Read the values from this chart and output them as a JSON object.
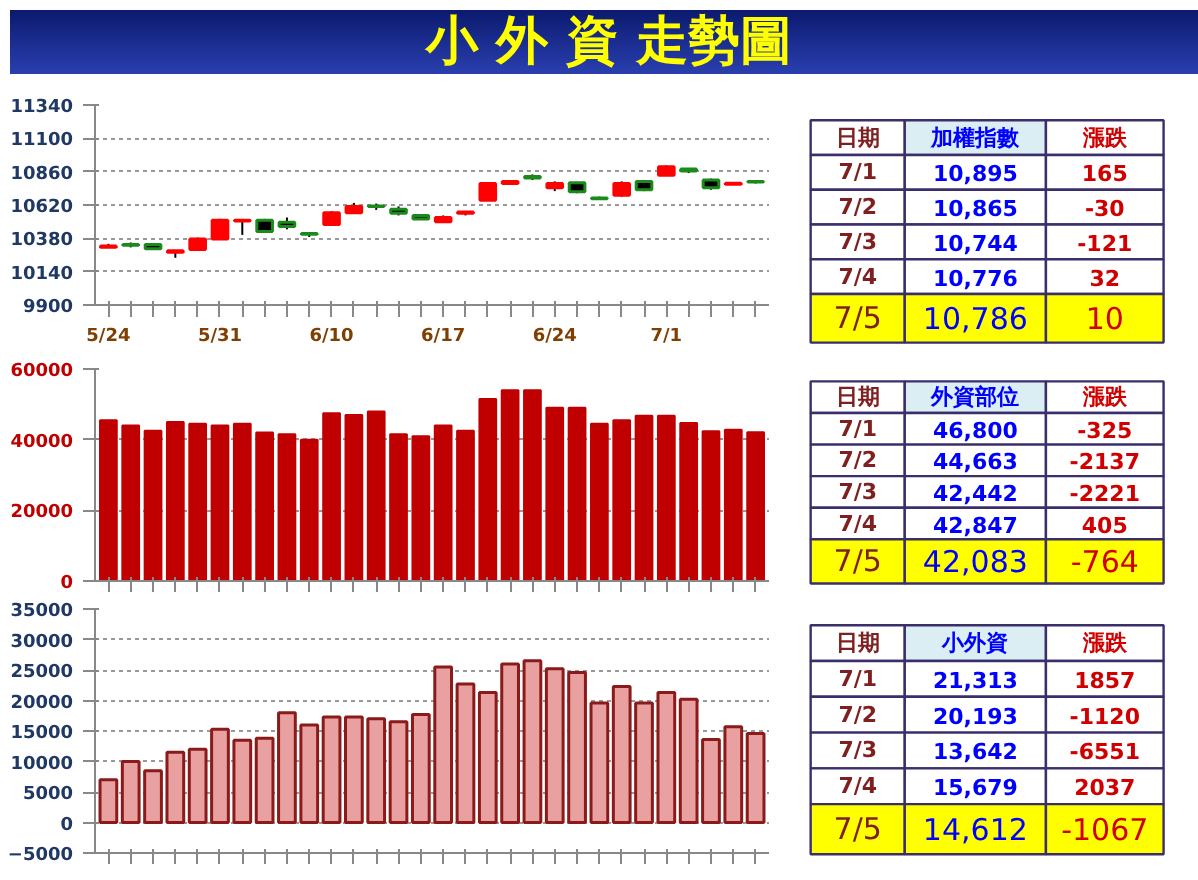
{
  "chart_data": [
    {
      "type": "candlestick",
      "title": "小 外 資 走勢圖",
      "categories": [
        "5/24",
        null,
        null,
        null,
        null,
        "5/31",
        null,
        null,
        null,
        null,
        "6/10",
        null,
        null,
        null,
        null,
        "6/17",
        null,
        null,
        null,
        null,
        "6/24",
        null,
        null,
        null,
        null,
        "7/1",
        null,
        null,
        null,
        null
      ],
      "ohlc": [
        [
          10315,
          10340,
          10310,
          10325
        ],
        [
          10335,
          10350,
          10315,
          10330
        ],
        [
          10335,
          10340,
          10300,
          10305
        ],
        [
          10280,
          10295,
          10240,
          10290
        ],
        [
          10300,
          10385,
          10295,
          10375
        ],
        [
          10375,
          10520,
          10370,
          10510
        ],
        [
          10505,
          10515,
          10405,
          10510
        ],
        [
          10510,
          10520,
          10420,
          10430
        ],
        [
          10495,
          10530,
          10445,
          10465
        ],
        [
          10415,
          10425,
          10390,
          10410
        ],
        [
          10480,
          10575,
          10475,
          10565
        ],
        [
          10565,
          10635,
          10560,
          10610
        ],
        [
          10612,
          10630,
          10585,
          10610
        ],
        [
          10590,
          10610,
          10545,
          10560
        ],
        [
          10545,
          10555,
          10515,
          10520
        ],
        [
          10500,
          10545,
          10490,
          10530
        ],
        [
          10560,
          10575,
          10545,
          10570
        ],
        [
          10655,
          10780,
          10650,
          10775
        ],
        [
          10775,
          10800,
          10770,
          10790
        ],
        [
          10825,
          10840,
          10800,
          10815
        ],
        [
          10745,
          10790,
          10720,
          10775
        ],
        [
          10780,
          10785,
          10705,
          10715
        ],
        [
          10670,
          10680,
          10660,
          10665
        ],
        [
          10690,
          10790,
          10680,
          10775
        ],
        [
          10790,
          10795,
          10720,
          10730
        ],
        [
          10835,
          10905,
          10830,
          10895
        ],
        [
          10880,
          10885,
          10850,
          10865
        ],
        [
          10800,
          10810,
          10730,
          10744
        ],
        [
          10770,
          10785,
          10765,
          10776
        ],
        [
          10790,
          10800,
          10775,
          10786
        ]
      ],
      "colors": [
        "#ff0000",
        "#000000",
        "#000000",
        "#ff0000",
        "#ff0000",
        "#ff0000",
        "#ff0000",
        "#000000",
        "#000000",
        "#000000",
        "#ff0000",
        "#ff0000",
        "#000000",
        "#000000",
        "#000000",
        "#ff0000",
        "#ff0000",
        "#ff0000",
        "#ff0000",
        "#000000",
        "#ff0000",
        "#000000",
        "#000000",
        "#ff0000",
        "#000000",
        "#ff0000",
        "#000000",
        "#000000",
        "#ff0000",
        "#000000"
      ],
      "ylim": [
        9900,
        11340
      ],
      "yticks": [
        9900,
        10140,
        10380,
        10620,
        10860,
        11100,
        11340
      ],
      "grid": "y"
    },
    {
      "type": "bar",
      "categories": [
        null,
        null,
        null,
        null,
        null,
        null,
        null,
        null,
        null,
        null,
        null,
        null,
        null,
        null,
        null,
        null,
        null,
        null,
        null,
        null,
        null,
        null,
        null,
        null,
        null,
        null,
        null,
        null,
        null,
        null
      ],
      "values": [
        45500,
        44000,
        42500,
        45000,
        44500,
        44000,
        44500,
        42000,
        41500,
        40000,
        47500,
        47000,
        48000,
        41500,
        41000,
        44000,
        42500,
        51500,
        54000,
        54000,
        49000,
        49000,
        44500,
        45500,
        46800,
        46800,
        44700,
        42400,
        42800,
        42100
      ],
      "color": "#c00000",
      "ylim": [
        0,
        60000
      ],
      "yticks": [
        0,
        20000,
        40000,
        60000
      ],
      "grid": "y",
      "tick_labels": "y"
    },
    {
      "type": "bar",
      "categories": [
        null,
        null,
        null,
        null,
        null,
        null,
        null,
        null,
        null,
        null,
        null,
        null,
        null,
        null,
        null,
        null,
        null,
        null,
        null,
        null,
        null,
        null,
        null,
        null,
        null,
        null,
        null,
        null,
        null,
        null
      ],
      "values": [
        7000,
        10000,
        8500,
        11500,
        12000,
        15300,
        13500,
        13800,
        18000,
        16000,
        17300,
        17300,
        17000,
        16500,
        17700,
        25500,
        22700,
        21300,
        26000,
        26500,
        25200,
        24600,
        19600,
        22300,
        19600,
        21300,
        20200,
        13600,
        15700,
        14600
      ],
      "color": "#e8a0a0",
      "ylim": [
        -5000,
        35000
      ],
      "yticks": [
        -5000,
        0,
        5000,
        10000,
        15000,
        20000,
        25000,
        30000,
        35000
      ],
      "grid": "y",
      "tick_labels": "y"
    },
    {
      "type": "other",
      "annotations": [
        "日期",
        "加權指數",
        "漲跌",
        "7/1",
        "10,895",
        "165",
        "7/2",
        "10,865",
        "-30",
        "7/3",
        "10,744",
        "-121",
        "7/4",
        "10,776",
        "32",
        "7/5",
        "10,786",
        "10"
      ]
    },
    {
      "type": "other",
      "annotations": [
        "日期",
        "外資部位",
        "漲跌",
        "7/1",
        "46,800",
        "-325",
        "7/2",
        "44,663",
        "-2137",
        "7/3",
        "42,442",
        "-2221",
        "7/4",
        "42,847",
        "405",
        "7/5",
        "42,083",
        "-764"
      ]
    },
    {
      "type": "other",
      "annotations": [
        "日期",
        "小外資",
        "漲跌",
        "7/1",
        "21,313",
        "1857",
        "7/2",
        "20,193",
        "-1120",
        "7/3",
        "13,642",
        "-6551",
        "7/4",
        "15,679",
        "2037",
        "7/5",
        "14,612",
        "-1067"
      ]
    }
  ]
}
